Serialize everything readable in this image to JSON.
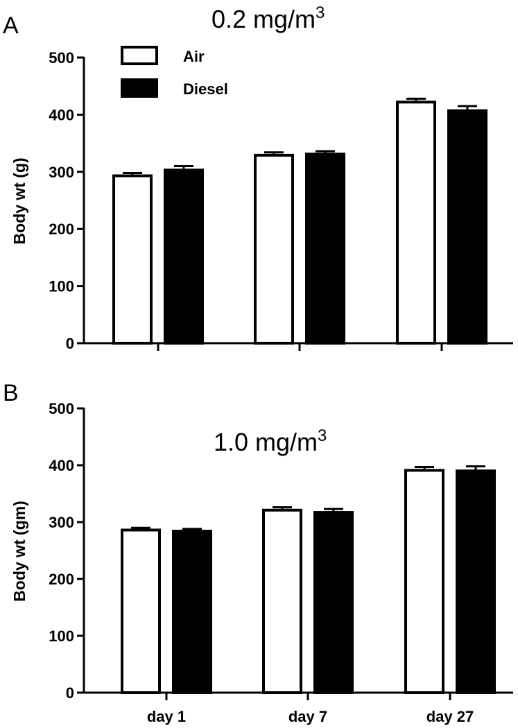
{
  "chart_data": [
    {
      "type": "bar",
      "panel": "A",
      "title": "0.2 mg/m",
      "title_sup": "3",
      "ylabel": "Body wt (g)",
      "xlabel": "",
      "ylim": [
        0,
        500
      ],
      "yticks": [
        "0",
        "100",
        "200",
        "300",
        "400",
        "500"
      ],
      "categories": [
        "day 1",
        "day 7",
        "day 27"
      ],
      "show_category_labels": false,
      "legend": {
        "placement": "top-left",
        "entries": [
          "Air",
          "Diesel"
        ]
      },
      "series": [
        {
          "name": "Air",
          "color": "#ffffff",
          "values": [
            293,
            329,
            422
          ],
          "errors": [
            5,
            5,
            6
          ]
        },
        {
          "name": "Diesel",
          "color": "#000000",
          "values": [
            303,
            331,
            407
          ],
          "errors": [
            7,
            5,
            8
          ]
        }
      ],
      "grid": false
    },
    {
      "type": "bar",
      "panel": "B",
      "title": "1.0 mg/m",
      "title_sup": "3",
      "ylabel": "Body wt (gm)",
      "xlabel": "",
      "ylim": [
        0,
        500
      ],
      "yticks": [
        "0",
        "100",
        "200",
        "300",
        "400",
        "500"
      ],
      "categories": [
        "day 1",
        "day 7",
        "day 27"
      ],
      "show_category_labels": true,
      "series": [
        {
          "name": "Air",
          "color": "#ffffff",
          "values": [
            286,
            321,
            391
          ],
          "errors": [
            4,
            5,
            6
          ]
        },
        {
          "name": "Diesel",
          "color": "#000000",
          "values": [
            284,
            317,
            390
          ],
          "errors": [
            4,
            6,
            8
          ]
        }
      ],
      "grid": false
    }
  ]
}
